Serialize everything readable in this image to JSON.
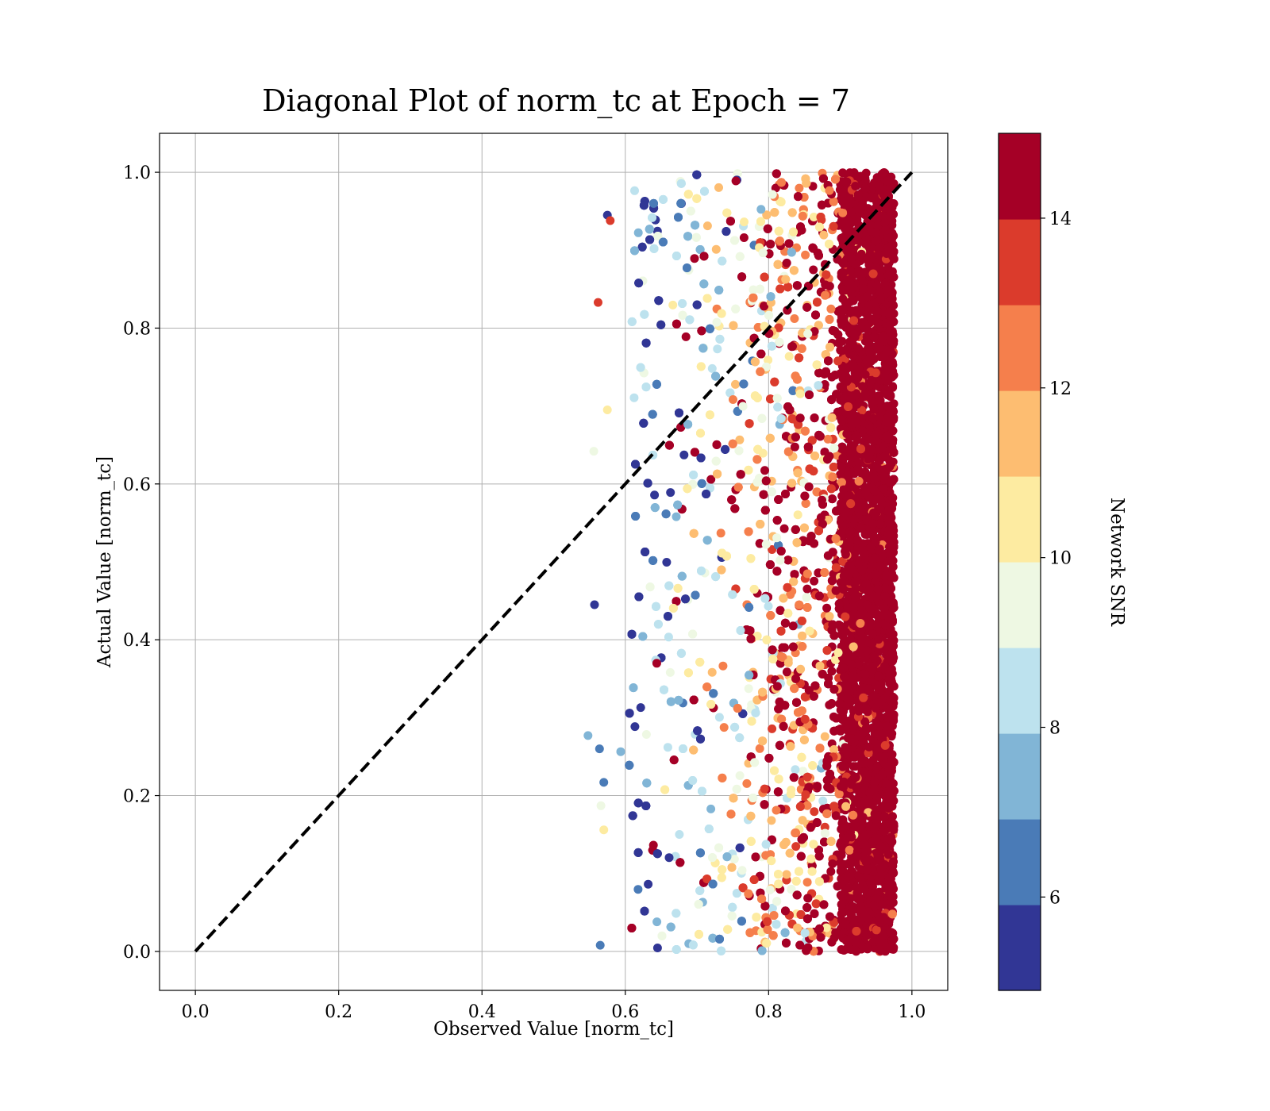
{
  "chart_data": {
    "type": "scatter",
    "title": "Diagonal Plot of norm_tc at Epoch = 7",
    "xlabel": "Observed Value [norm_tc]",
    "ylabel": "Actual Value [norm_tc]",
    "xlim": [
      -0.05,
      1.05
    ],
    "ylim": [
      -0.05,
      1.05
    ],
    "xticks": [
      "0.0",
      "0.2",
      "0.4",
      "0.6",
      "0.8",
      "1.0"
    ],
    "yticks": [
      "0.0",
      "0.2",
      "0.4",
      "0.6",
      "0.8",
      "1.0"
    ],
    "grid": true,
    "reference_line": {
      "style": "dashed",
      "color": "#000000",
      "from": [
        0,
        0
      ],
      "to": [
        1,
        1
      ]
    },
    "colorbar": {
      "label": "Network SNR",
      "range": [
        4.9,
        15.0
      ],
      "ticks": [
        "6",
        "8",
        "10",
        "12",
        "14"
      ],
      "colors": [
        "#313695",
        "#4575b4",
        "#74add1",
        "#abd9e9",
        "#e0f3f8",
        "#ffffbf",
        "#fee090",
        "#fdae61",
        "#f46d43",
        "#d73027",
        "#a50026"
      ],
      "discrete_colors": [
        "#313695",
        "#4a7bb7",
        "#81b5d6",
        "#bde2ee",
        "#eef8e3",
        "#fdeba1",
        "#fdbd71",
        "#f57f4c",
        "#db3b2c",
        "#a50026"
      ]
    },
    "point_cloud": {
      "x_range": [
        0.55,
        0.975
      ],
      "y_range": [
        0.0,
        1.0
      ],
      "trend": "network SNR increases with observed value; observed values above about 0.9 are almost all above 14",
      "outliers": [
        {
          "x": 0.562,
          "y": 0.833,
          "snr": 13.8
        },
        {
          "x": 0.557,
          "y": 0.445,
          "snr": 5.2
        },
        {
          "x": 0.548,
          "y": 0.277,
          "snr": 7.5
        },
        {
          "x": 0.565,
          "y": 0.008,
          "snr": 6.2
        },
        {
          "x": 0.575,
          "y": 0.695,
          "snr": 10.6
        },
        {
          "x": 0.556,
          "y": 0.642,
          "snr": 9.6
        },
        {
          "x": 0.579,
          "y": 0.938,
          "snr": 13.6
        },
        {
          "x": 0.575,
          "y": 0.945,
          "snr": 5.3
        },
        {
          "x": 0.566,
          "y": 0.187,
          "snr": 9.5
        },
        {
          "x": 0.564,
          "y": 0.26,
          "snr": 6.6
        },
        {
          "x": 0.57,
          "y": 0.156,
          "snr": 10.8
        },
        {
          "x": 0.57,
          "y": 0.217,
          "snr": 6.4
        }
      ]
    }
  }
}
